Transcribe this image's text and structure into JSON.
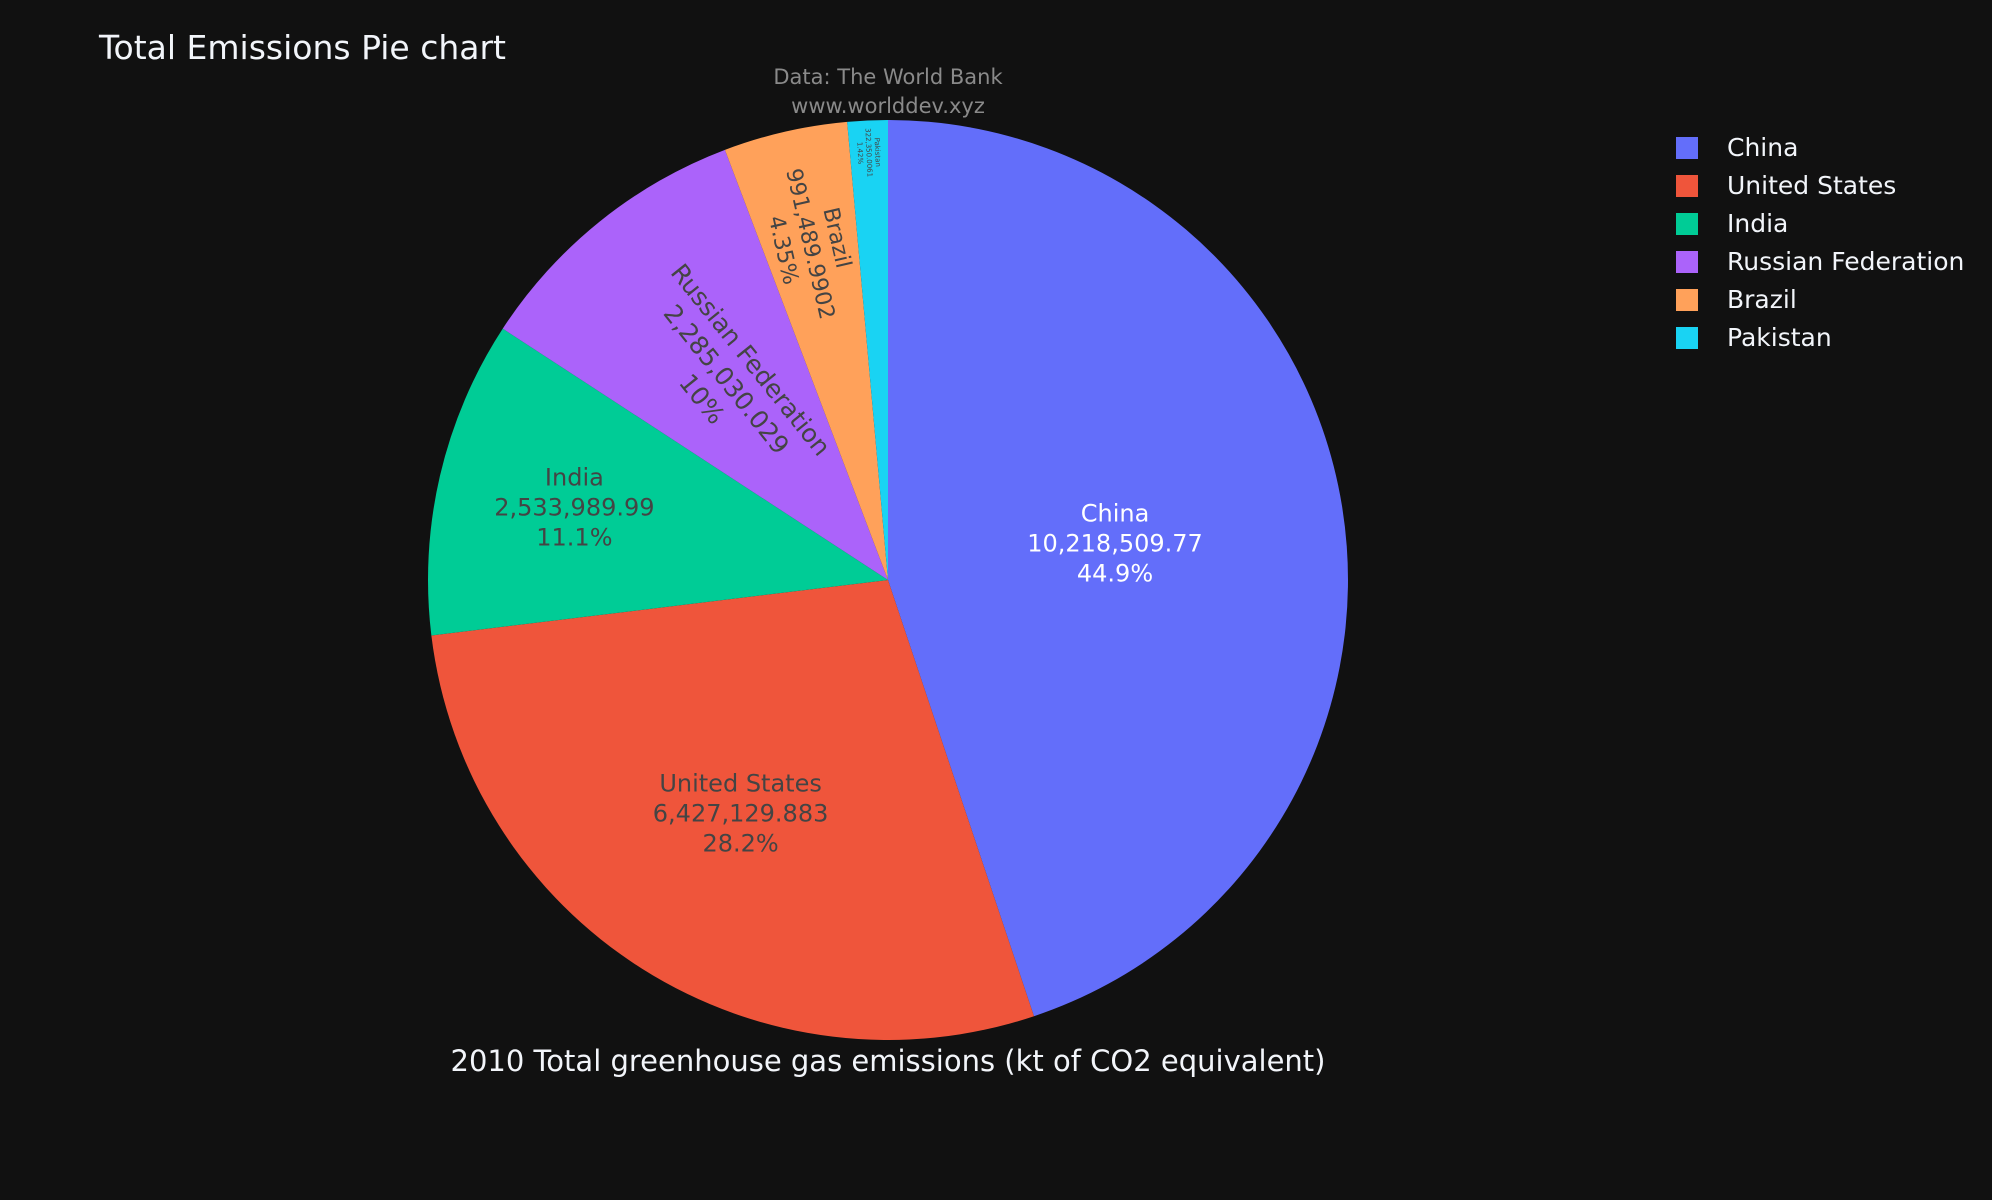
{
  "chart": {
    "title": "Total Emissions Pie chart",
    "source_line1": "Data: The World Bank",
    "source_line2": "www.worlddev.xyz",
    "subtitle": "2010 Total greenhouse gas emissions (kt of CO2 equivalent)"
  },
  "chart_data": {
    "type": "pie",
    "title": "Total Emissions Pie chart",
    "categories": [
      "China",
      "United States",
      "India",
      "Russian Federation",
      "Brazil",
      "Pakistan"
    ],
    "values": [
      10218509.77,
      6427129.883,
      2533989.99,
      2285030.029,
      991489.9902,
      322350.0061
    ],
    "value_labels": [
      "10,218,509.77",
      "6,427,129.883",
      "2,533,989.99",
      "2,285,030.029",
      "991,489.9902",
      "322,350.0061"
    ],
    "percent_labels": [
      "44.9%",
      "28.2%",
      "11.1%",
      "10%",
      "4.35%",
      "1.42%"
    ],
    "colors": [
      "#636efa",
      "#EF553B",
      "#00cc96",
      "#ab63fa",
      "#FFA15A",
      "#19d3f3"
    ],
    "label_text_colors": [
      "#ffffff",
      "#444444",
      "#444444",
      "#444444",
      "#444444",
      "#444444"
    ],
    "legend_position": "top-right",
    "direction": "clockwise",
    "start": "top"
  }
}
